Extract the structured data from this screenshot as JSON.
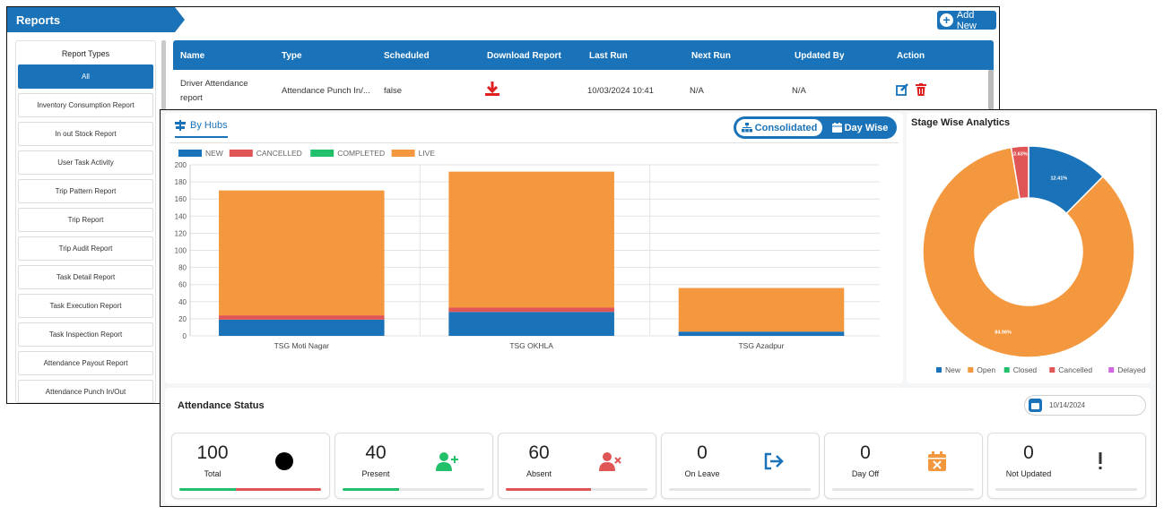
{
  "reports_tab": "Reports",
  "add_new_label": "Add New",
  "sidebar": {
    "title": "Report Types",
    "items": [
      {
        "label": "All",
        "active": true
      },
      {
        "label": "Inventory Consumption Report"
      },
      {
        "label": "In out Stock Report"
      },
      {
        "label": "User Task Activity"
      },
      {
        "label": "Trip Pattern Report"
      },
      {
        "label": "Trip Report"
      },
      {
        "label": "Trip Audit Report"
      },
      {
        "label": "Task Detail Report"
      },
      {
        "label": "Task Execution Report"
      },
      {
        "label": "Task Inspection Report"
      },
      {
        "label": "Attendance Payout Report"
      },
      {
        "label": "Attendance Punch In/Out"
      }
    ]
  },
  "table": {
    "headers": [
      "Name",
      "Type",
      "Scheduled",
      "Download Report",
      "Last Run",
      "Next Run",
      "Updated By",
      "Action"
    ],
    "rows": [
      {
        "name_line1": "Driver Attendance",
        "name_line2": "report",
        "type": "Attendance Punch In/...",
        "scheduled": "false",
        "last_run": "10/03/2024 10:41",
        "next_run": "N/A",
        "updated_by": "N/A"
      }
    ]
  },
  "chart_panel": {
    "tab_label": "By Hubs",
    "toggle": {
      "consolidated": "Consolidated",
      "day_wise": "Day Wise"
    }
  },
  "chart_data": [
    {
      "type": "bar",
      "stacked": true,
      "categories": [
        "TSG Moti Nagar",
        "TSG OKHLA",
        "TSG Azadpur"
      ],
      "series": [
        {
          "name": "NEW",
          "color": "#1a73b8",
          "values": [
            19,
            28,
            5
          ]
        },
        {
          "name": "CANCELLED",
          "color": "#e05656",
          "values": [
            5,
            5,
            0
          ]
        },
        {
          "name": "COMPLETED",
          "color": "#22c06a",
          "values": [
            0,
            0,
            0
          ]
        },
        {
          "name": "LIVE",
          "color": "#f4983f",
          "values": [
            146,
            159,
            51
          ]
        }
      ],
      "y_ticks": [
        0,
        20,
        40,
        60,
        80,
        100,
        120,
        140,
        160,
        180,
        200
      ],
      "ylim": [
        0,
        200
      ]
    },
    {
      "type": "pie",
      "title": "Stage Wise Analytics",
      "donut": true,
      "slices": [
        {
          "name": "New",
          "value": 12.41,
          "label": "12.41%",
          "color": "#1a73b8"
        },
        {
          "name": "Open",
          "value": 84.96,
          "label": "84.96%",
          "color": "#f4983f"
        },
        {
          "name": "Closed",
          "value": 0,
          "label": "",
          "color": "#22c06a"
        },
        {
          "name": "Cancelled",
          "value": 2.63,
          "label": "2.63%",
          "color": "#e05656"
        },
        {
          "name": "Delayed",
          "value": 0,
          "label": "",
          "color": "#d066e0"
        }
      ]
    }
  ],
  "attendance": {
    "title": "Attendance Status",
    "date": "10/14/2024",
    "stats": [
      {
        "value": "100",
        "label": "Total",
        "icon": "circle-icon",
        "icon_color": "#000000",
        "bar": [
          {
            "color": "#22c06a",
            "pct": 40
          },
          {
            "color": "#e05656",
            "pct": 60
          }
        ]
      },
      {
        "value": "40",
        "label": "Present",
        "icon": "user-add-icon",
        "icon_color": "#22c06a",
        "bar": [
          {
            "color": "#22c06a",
            "pct": 40
          }
        ]
      },
      {
        "value": "60",
        "label": "Absent",
        "icon": "user-remove-icon",
        "icon_color": "#e05656",
        "bar": [
          {
            "color": "#e05656",
            "pct": 60
          }
        ]
      },
      {
        "value": "0",
        "label": "On Leave",
        "icon": "sign-out-icon",
        "icon_color": "#1a73b8",
        "bar": []
      },
      {
        "value": "0",
        "label": "Day Off",
        "icon": "calendar-x-icon",
        "icon_color": "#f4983f",
        "bar": []
      },
      {
        "value": "0",
        "label": "Not Updated",
        "icon": "exclamation-icon",
        "icon_color": "#333333",
        "bar": []
      }
    ]
  }
}
